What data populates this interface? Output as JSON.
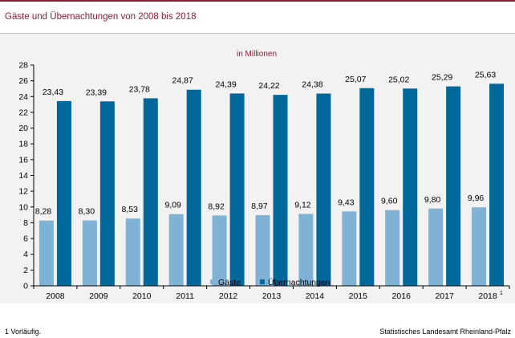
{
  "header": {
    "title": "Gäste und Übernachtungen von 2008 bis 2018"
  },
  "footer": {
    "footnote": "1 Vorläufig.",
    "source": "Statistisches Landesamt Rheinland-Pfalz"
  },
  "colors": {
    "accent": "#8e1b36",
    "gaeste": "#7fb2d4",
    "uebernachtungen": "#00679a"
  },
  "chart_data": {
    "type": "bar",
    "subtitle": "in Millionen",
    "categories": [
      "2008",
      "2009",
      "2010",
      "2011",
      "2012",
      "2013",
      "2014",
      "2015",
      "2016",
      "2017",
      "2018"
    ],
    "category_superscripts": [
      "",
      "",
      "",
      "",
      "",
      "",
      "",
      "",
      "",
      "",
      "1"
    ],
    "series": [
      {
        "name": "Gäste",
        "values": [
          8.28,
          8.3,
          8.53,
          9.09,
          8.92,
          8.97,
          9.12,
          9.43,
          9.6,
          9.8,
          9.96
        ],
        "labels": [
          "8,28",
          "8,30",
          "8,53",
          "9,09",
          "8,92",
          "8,97",
          "9,12",
          "9,43",
          "9,60",
          "9,80",
          "9,96"
        ],
        "color": "#7fb2d4"
      },
      {
        "name": "Übernachtungen",
        "values": [
          23.43,
          23.39,
          23.78,
          24.87,
          24.39,
          24.22,
          24.38,
          25.07,
          25.02,
          25.29,
          25.63
        ],
        "labels": [
          "23,43",
          "23,39",
          "23,78",
          "24,87",
          "24,39",
          "24,22",
          "24,38",
          "25,07",
          "25,02",
          "25,29",
          "25,63"
        ],
        "color": "#00679a"
      }
    ],
    "yticks": [
      0,
      2,
      4,
      6,
      8,
      10,
      12,
      14,
      16,
      18,
      20,
      22,
      24,
      26,
      28
    ],
    "ylim": [
      0,
      28
    ],
    "grid": false,
    "legend_position": "bottom"
  }
}
